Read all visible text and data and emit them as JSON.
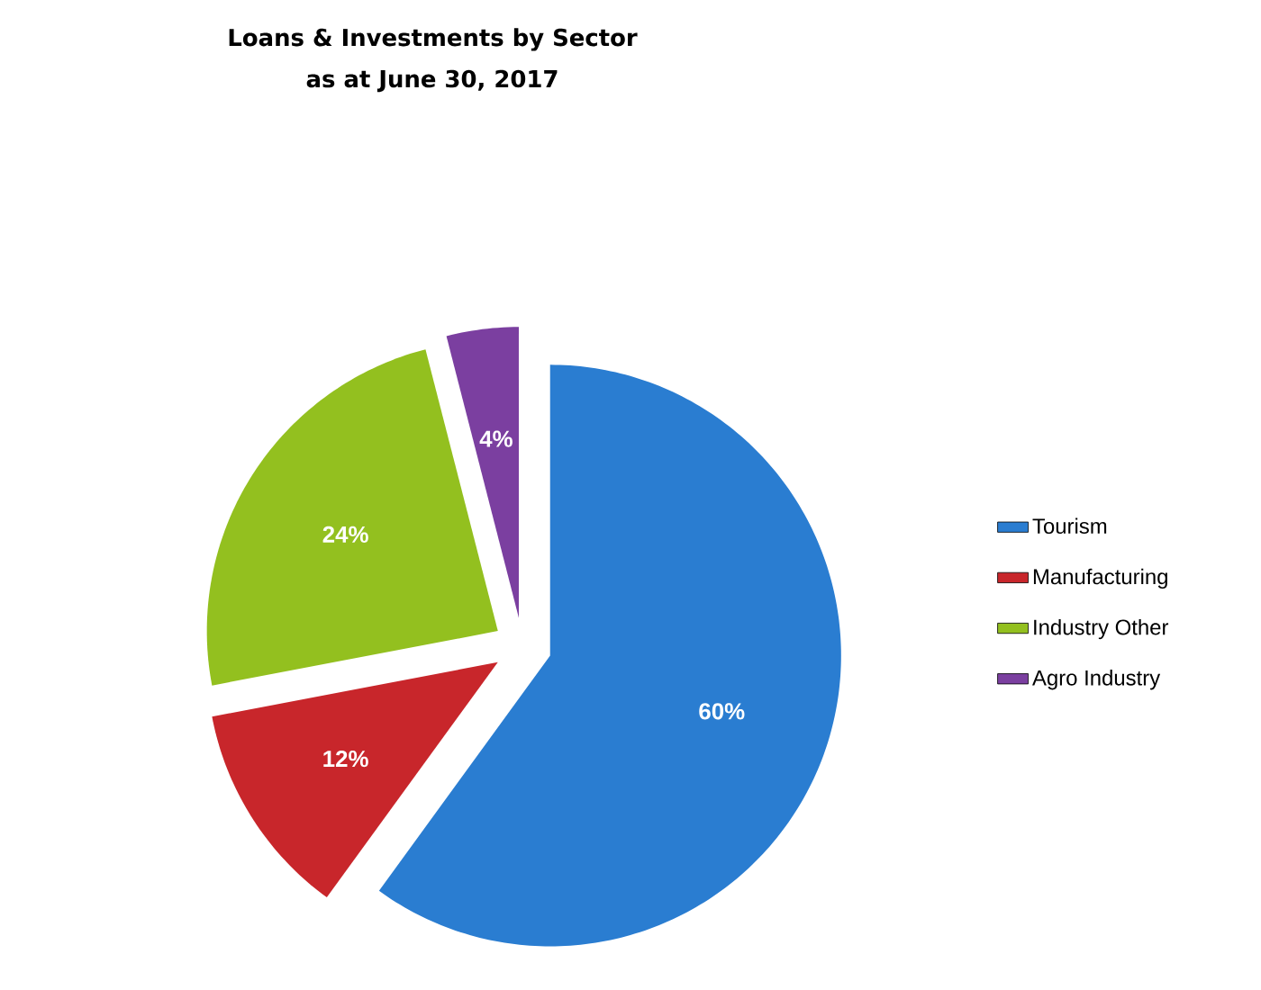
{
  "chart_data": {
    "type": "pie",
    "title": "Loans & Investments by Sector",
    "subtitle": "as at June 30, 2017",
    "categories": [
      "Tourism",
      "Manufacturing",
      "Industry Other",
      "Agro Industry"
    ],
    "values": [
      60,
      12,
      24,
      4
    ],
    "colors": [
      "#2a7dd1",
      "#c8262b",
      "#93c01f",
      "#7b3fa0"
    ],
    "value_labels": [
      "60%",
      "12%",
      "24%",
      "4%"
    ],
    "legend": "right"
  }
}
